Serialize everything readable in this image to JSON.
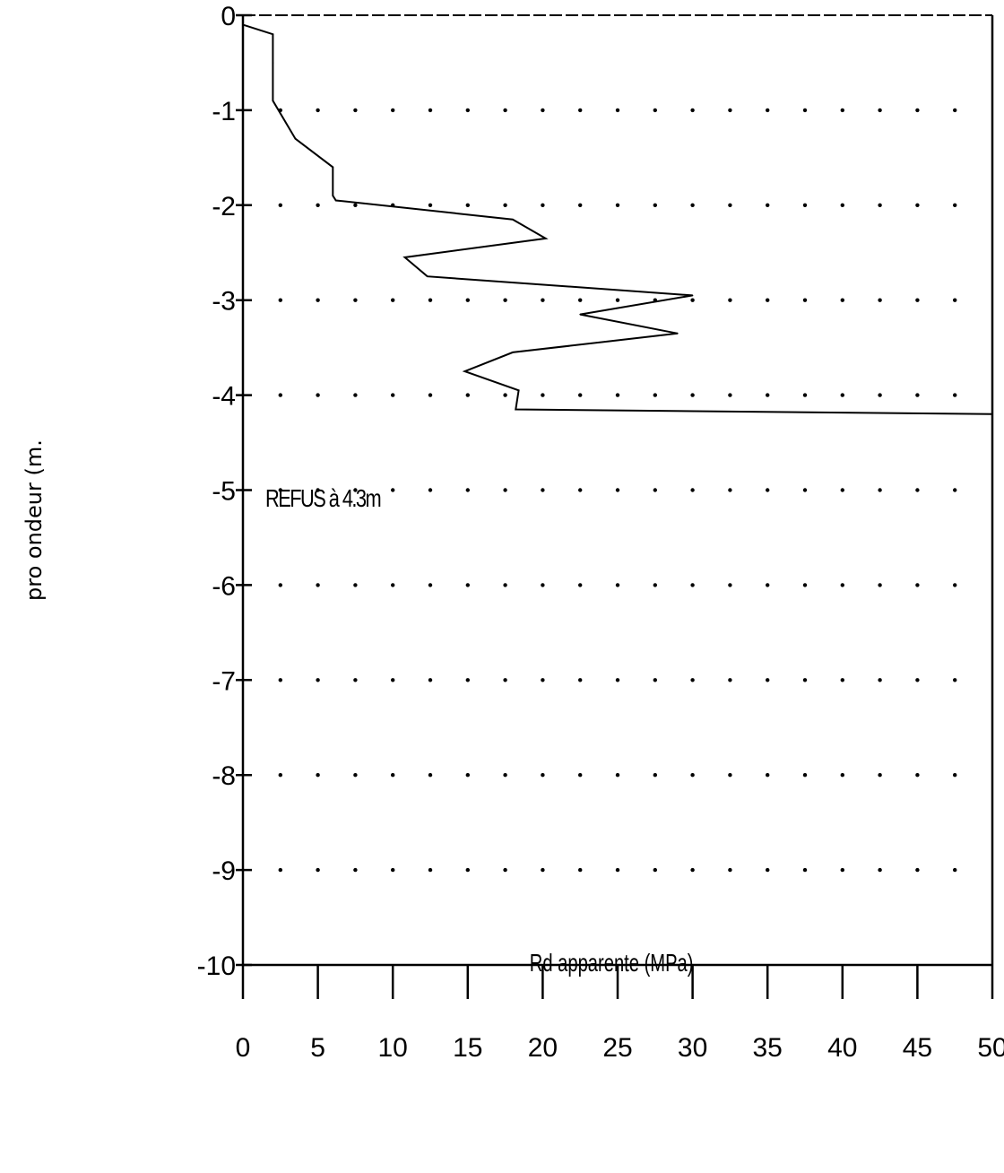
{
  "chart_data": {
    "type": "line",
    "title": "",
    "xlabel": "Rd apparente (MPa)",
    "ylabel": "pro ondeur (m.",
    "xlim": [
      0,
      50
    ],
    "ylim": [
      -10,
      0
    ],
    "x_ticks": [
      "0",
      "5",
      "10",
      "15",
      "20",
      "25",
      "30",
      "35",
      "40",
      "45",
      "50"
    ],
    "y_ticks": [
      "0",
      "-1",
      "-2",
      "-3",
      "-4",
      "-5",
      "-6",
      "-7",
      "-8",
      "-9",
      "-10"
    ],
    "grid": "dotted",
    "annotation": "REFUS à 4.3m",
    "series": [
      {
        "x": [
          0,
          2,
          2,
          2,
          3.5,
          6,
          6,
          6.2,
          18,
          20.2,
          10.8,
          12.3,
          30,
          22.5,
          29,
          18,
          14.8,
          18.4,
          18.2,
          50
        ],
        "y": [
          -0.1,
          -0.2,
          -0.5,
          -0.9,
          -1.3,
          -1.6,
          -1.9,
          -1.95,
          -2.15,
          -2.35,
          -2.55,
          -2.75,
          -2.95,
          -3.15,
          -3.35,
          -3.55,
          -3.75,
          -3.95,
          -4.15,
          -4.2
        ]
      }
    ]
  }
}
